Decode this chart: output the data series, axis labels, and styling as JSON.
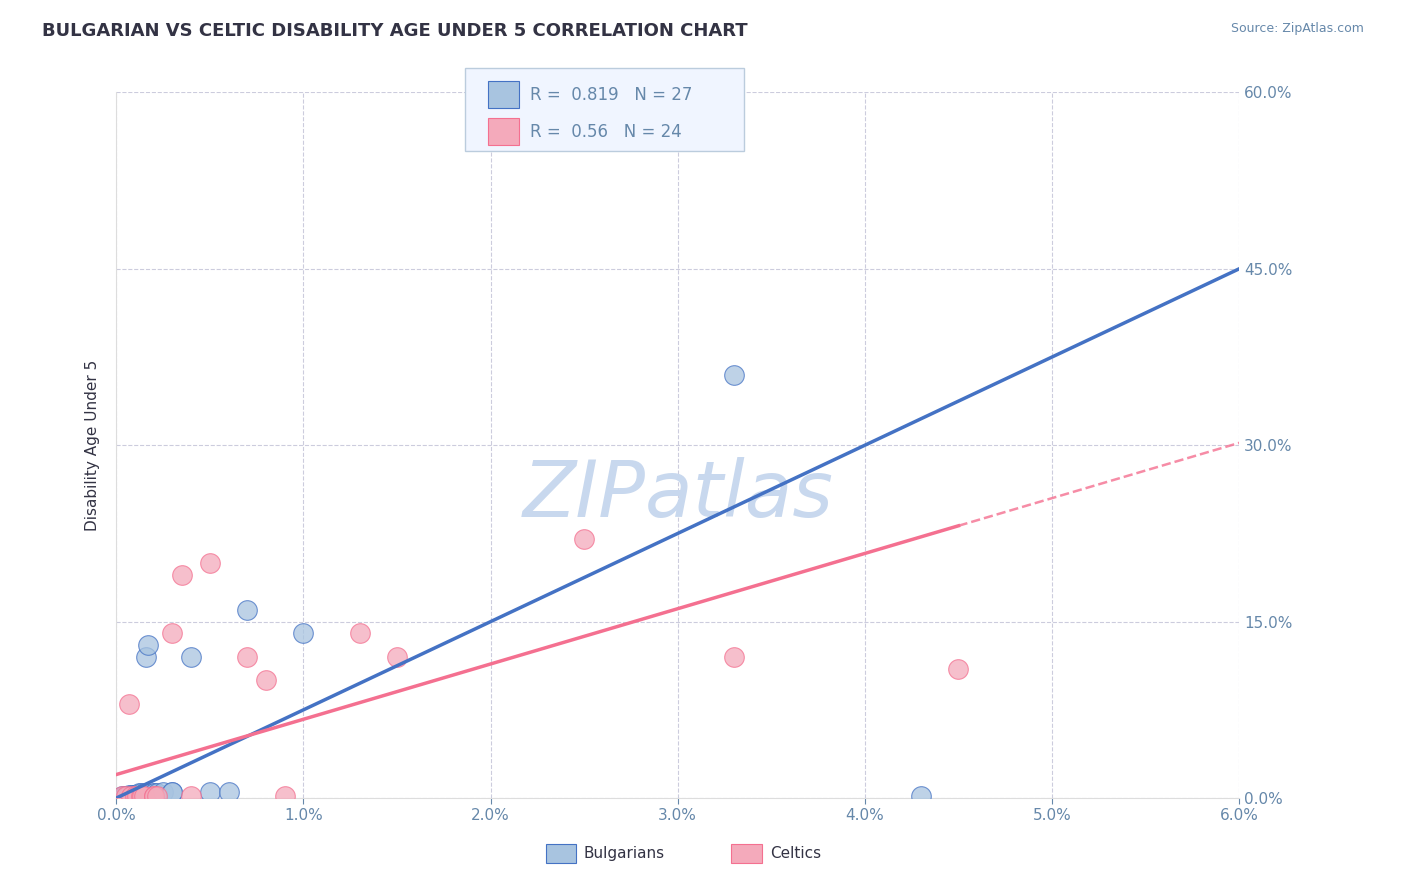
{
  "title": "BULGARIAN VS CELTIC DISABILITY AGE UNDER 5 CORRELATION CHART",
  "source": "Source: ZipAtlas.com",
  "ylabel": "Disability Age Under 5",
  "xlim": [
    0.0,
    0.06
  ],
  "ylim": [
    0.0,
    0.6
  ],
  "xticks": [
    0.0,
    0.01,
    0.02,
    0.03,
    0.04,
    0.05,
    0.06
  ],
  "xtick_labels": [
    "0.0%",
    "1.0%",
    "2.0%",
    "3.0%",
    "4.0%",
    "5.0%",
    "6.0%"
  ],
  "yticks": [
    0.0,
    0.15,
    0.3,
    0.45,
    0.6
  ],
  "ytick_labels": [
    "0.0%",
    "15.0%",
    "30.0%",
    "45.0%",
    "60.0%"
  ],
  "bulgarian_R": 0.819,
  "bulgarian_N": 27,
  "celtic_R": 0.56,
  "celtic_N": 24,
  "blue_color": "#A8C4E0",
  "pink_color": "#F4AABB",
  "blue_line": "#4472C4",
  "pink_line": "#F47090",
  "blue_patch": "#A8C4E0",
  "pink_patch": "#F4AABB",
  "watermark_color": "#C8D8EE",
  "bulgarians_x": [
    0.0003,
    0.0004,
    0.0005,
    0.0006,
    0.0007,
    0.0008,
    0.0009,
    0.001,
    0.001,
    0.0012,
    0.0013,
    0.0015,
    0.0016,
    0.0017,
    0.002,
    0.002,
    0.0022,
    0.0025,
    0.003,
    0.003,
    0.004,
    0.005,
    0.006,
    0.007,
    0.01,
    0.033,
    0.043
  ],
  "bulgarians_y": [
    0.002,
    0.002,
    0.002,
    0.002,
    0.003,
    0.003,
    0.003,
    0.003,
    0.003,
    0.004,
    0.004,
    0.004,
    0.12,
    0.13,
    0.004,
    0.004,
    0.004,
    0.005,
    0.005,
    0.005,
    0.12,
    0.005,
    0.005,
    0.16,
    0.14,
    0.36,
    0.002
  ],
  "celtics_x": [
    0.0003,
    0.0005,
    0.0007,
    0.0008,
    0.001,
    0.0011,
    0.0013,
    0.0014,
    0.0015,
    0.002,
    0.002,
    0.0022,
    0.003,
    0.0035,
    0.004,
    0.005,
    0.007,
    0.008,
    0.009,
    0.013,
    0.015,
    0.025,
    0.033,
    0.045
  ],
  "celtics_y": [
    0.002,
    0.002,
    0.08,
    0.002,
    0.002,
    0.002,
    0.002,
    0.002,
    0.002,
    0.002,
    0.002,
    0.002,
    0.14,
    0.19,
    0.002,
    0.2,
    0.12,
    0.1,
    0.002,
    0.14,
    0.12,
    0.22,
    0.12,
    0.11
  ],
  "bg_color": "#FFFFFF",
  "grid_color": "#CCCCDD",
  "title_color": "#333344",
  "axis_color": "#6688AA",
  "legend_bg": "#F0F5FF",
  "legend_edge": "#BBCCDD",
  "blue_reg_intercept": 0.0,
  "blue_reg_slope": 7.5,
  "pink_reg_intercept": 0.02,
  "pink_reg_slope": 4.7
}
